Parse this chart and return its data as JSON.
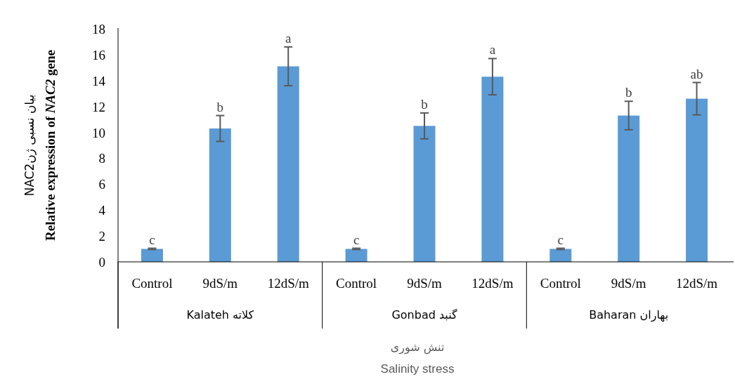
{
  "chart_data": {
    "type": "bar",
    "categories": [
      "Control",
      "9dS/m",
      "12dS/m",
      "Control",
      "9dS/m",
      "12dS/m",
      "Control",
      "9dS/m",
      "12dS/m"
    ],
    "values": [
      1.0,
      10.3,
      15.1,
      1.0,
      10.5,
      14.3,
      1.0,
      11.3,
      12.6
    ],
    "errors": [
      0.05,
      1.0,
      1.5,
      0.05,
      1.0,
      1.4,
      0.05,
      1.1,
      1.25
    ],
    "value_labels": [
      "c",
      "b",
      "a",
      "c",
      "b",
      "a",
      "c",
      "b",
      "ab"
    ],
    "color": "#5b9bd5",
    "ylim": [
      0,
      18
    ],
    "yticks": [
      0,
      2,
      4,
      6,
      8,
      10,
      12,
      14,
      16,
      18
    ],
    "ylabel": "Relative  expression of *NAC2* gene",
    "annotations": [
      "Kalateh کلاته",
      "Gonbad گنبد",
      "Baharan بهاران",
      "تنش شوری",
      "Salinity  stress",
      "بیان نسبی ژنNAC2"
    ]
  }
}
